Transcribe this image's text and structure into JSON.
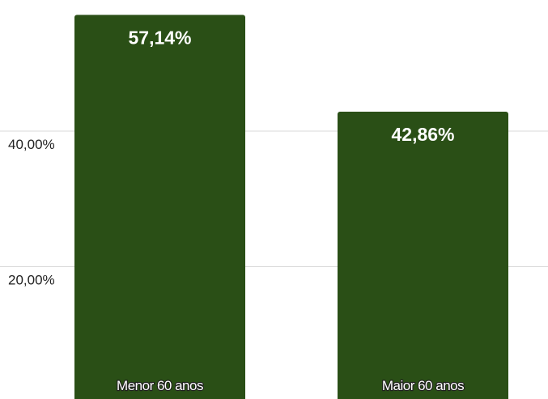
{
  "chart_data": {
    "type": "bar",
    "categories": [
      "Menor 60 anos",
      "Maior 60 anos"
    ],
    "values": [
      57.14,
      42.86
    ],
    "value_labels": [
      "57,14%",
      "42,86%"
    ],
    "yticks": [
      20,
      40
    ],
    "ytick_labels": [
      "20,00%",
      "40,00%"
    ],
    "ylim": [
      0,
      58.5
    ],
    "grid": true,
    "legend": "none",
    "bar_color": "#2a4f16",
    "title": "",
    "xlabel": "",
    "ylabel": ""
  }
}
